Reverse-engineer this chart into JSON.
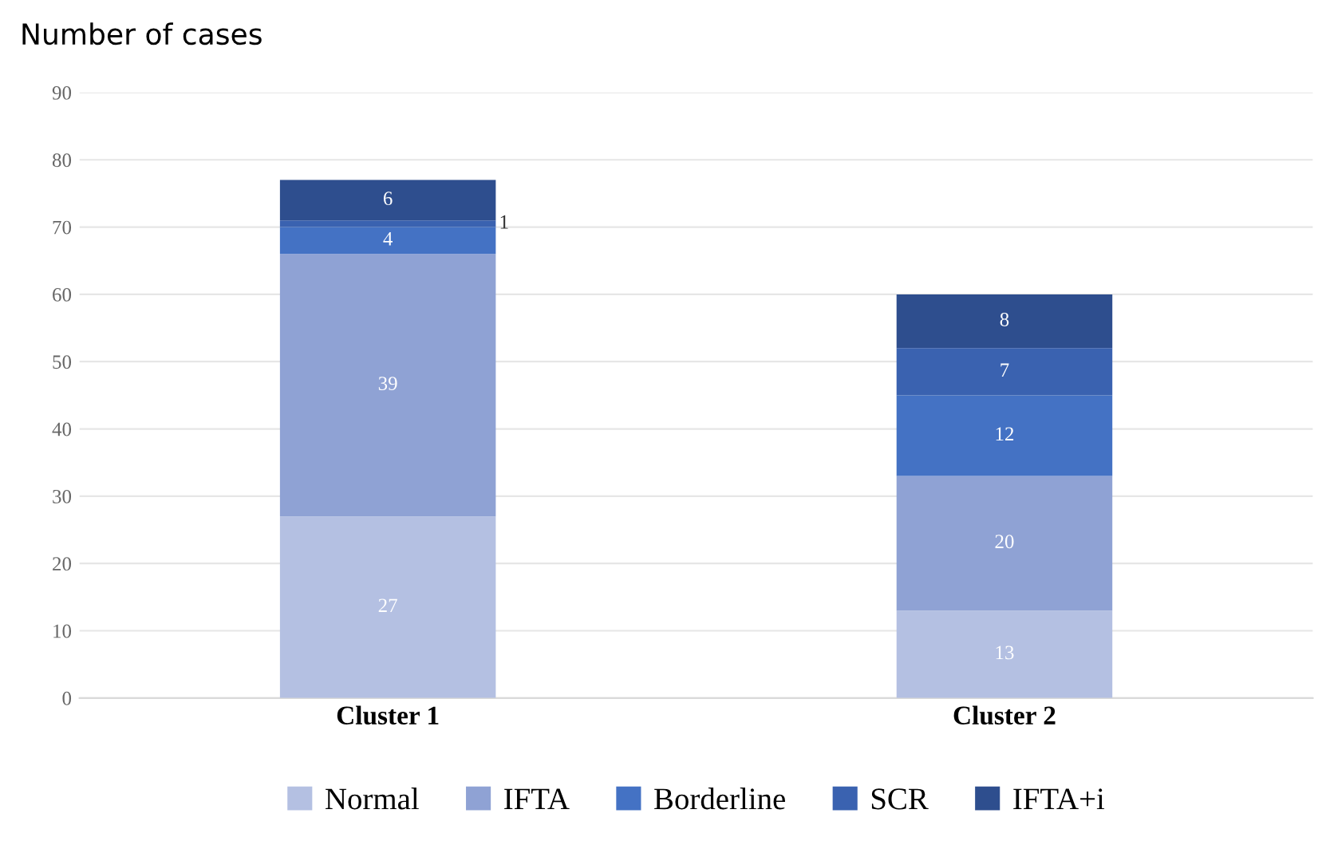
{
  "chart_data": {
    "type": "bar",
    "ylabel": "Number of cases",
    "categories": [
      "Cluster 1",
      "Cluster 2"
    ],
    "stacked": true,
    "series": [
      {
        "name": "Normal",
        "color": "#b4c0e2",
        "values": [
          27,
          13
        ]
      },
      {
        "name": "IFTA",
        "color": "#8fa2d4",
        "values": [
          39,
          20
        ]
      },
      {
        "name": "Borderline",
        "color": "#4472c4",
        "values": [
          4,
          12
        ]
      },
      {
        "name": "SCR",
        "color": "#3a62b0",
        "values": [
          1,
          7
        ]
      },
      {
        "name": "IFTA+i",
        "color": "#2e4e8e",
        "values": [
          6,
          8
        ]
      }
    ],
    "ylim": [
      0,
      90
    ],
    "yticks": [
      0,
      10,
      20,
      30,
      40,
      50,
      60,
      70,
      80,
      90
    ],
    "grid": "y",
    "legend": "bottom",
    "data_labels": true
  }
}
